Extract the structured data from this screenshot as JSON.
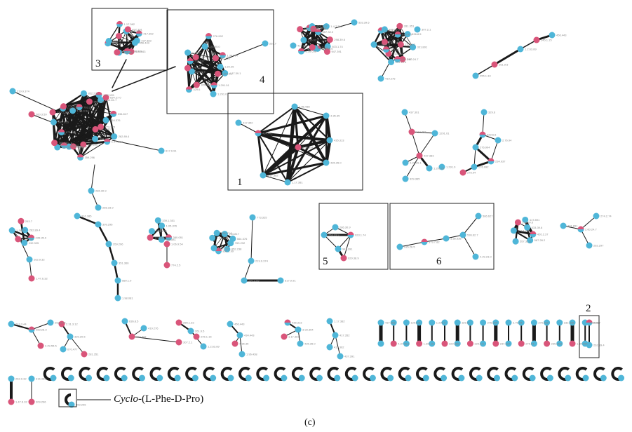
{
  "figure_label": "(c)",
  "annotation": {
    "italic": "Cyclo",
    "rest": "-(L-Phe-D-Pro)"
  },
  "boxes": [
    "1",
    "2",
    "3",
    "4",
    "5",
    "6"
  ],
  "colors": {
    "blue": "#4fb6d8",
    "pink": "#d9557a",
    "edge": "#1a1a1a",
    "box": "#222222"
  },
  "node_labels": [
    "456.443",
    "434.443",
    "1.96.438",
    "4.35.35",
    "435.313",
    "3.93.354",
    "435.35.0",
    "1.17.381",
    "1.17.382",
    "417.352",
    "437.391",
    "417.392",
    "437.383",
    "4.37.39.1",
    "1291.01",
    "1.291.01",
    "1.291.0",
    "329.365",
    "329.6",
    "329.6.6",
    "276.994",
    "234.937",
    "2.76.94",
    "275.94",
    "276.992",
    "235.95.0",
    "232.325",
    "1.34.994",
    "1.39.25",
    "263.7",
    "262.89.4",
    "262.9.32",
    "1.47.6.32",
    "316.385",
    "309.296",
    "359.296",
    "351.366",
    "580.1.0",
    "1.98.081",
    "380.081",
    "386.881",
    "173.585",
    "345.1.55",
    "339.1.351",
    "1.05.376",
    "1.06.9.54",
    "774.2.5",
    "763.232",
    "852.238",
    "852.2.99",
    "1.82.135",
    "2.14.61.7",
    "634.27.0",
    "234.817",
    "564.376",
    "773.325",
    "219.9.374",
    "260.3.59",
    "617.9.91",
    "286.30.9",
    "268.33.9",
    "923.1.74",
    "947.391",
    "929.38.9",
    "935.26.5",
    "379.7.82",
    "1.38.638",
    "536.62.7",
    "586.627",
    "4.29.23.0",
    "426.2.37",
    "587.28.2",
    "557.32.0",
    "1.4.7.391",
    "298.39.6",
    "417.891",
    "533.39.6",
    "331.891",
    "2.60.24.7",
    "262.297",
    "274.2.74",
    "213.3.44",
    "283.28.3",
    "2.29.55.5",
    "252.3.74",
    "2.31.3.12",
    "339.20.5",
    "281.351",
    "670.477",
    "636.8.5",
    "722.322",
    "307.2.1",
    "419.276",
    "255.1.33",
    "261.9.5",
    "1.2.63.89",
    "245.1.15"
  ]
}
